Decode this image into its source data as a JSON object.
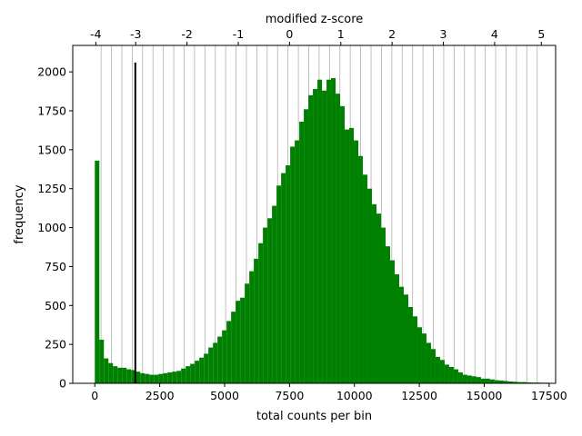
{
  "chart_data": {
    "type": "bar",
    "title": "",
    "xlabel": "total counts per bin",
    "ylabel": "frequency",
    "top_axis_label": "modified z-score",
    "xlim": [
      -850,
      17750
    ],
    "ylim": [
      0,
      2170
    ],
    "x_ticks": [
      0,
      2500,
      5000,
      7500,
      10000,
      12500,
      15000,
      17500
    ],
    "x_tick_labels": [
      "0",
      "2500",
      "5000",
      "7500",
      "10000",
      "12500",
      "15000",
      "17500"
    ],
    "y_ticks": [
      0,
      250,
      500,
      750,
      1000,
      1250,
      1500,
      1750,
      2000
    ],
    "y_tick_labels": [
      "0",
      "250",
      "500",
      "750",
      "1000",
      "1250",
      "1500",
      "1750",
      "2000"
    ],
    "top_ticks": [
      {
        "label": "-4",
        "count": 40
      },
      {
        "label": "-3",
        "count": 1575
      },
      {
        "label": "-2",
        "count": 3550
      },
      {
        "label": "-1",
        "count": 5525
      },
      {
        "label": "0",
        "count": 7500
      },
      {
        "label": "1",
        "count": 9475
      },
      {
        "label": "2",
        "count": 11450
      },
      {
        "label": "3",
        "count": 13425
      },
      {
        "label": "4",
        "count": 15400
      },
      {
        "label": "5",
        "count": 17200
      }
    ],
    "grid_lines_count": [
      240,
      640,
      1040,
      1440,
      1840,
      2240,
      2640,
      3040,
      3440,
      3840,
      4240,
      4640,
      5040,
      5440,
      5840,
      6240,
      6640,
      7040,
      7440,
      7840,
      8240,
      8640,
      9040,
      9440,
      9840,
      10240,
      10640,
      11040,
      11440,
      11840,
      12240,
      12640,
      13040,
      13440,
      13840,
      14240,
      14640,
      15040,
      15440,
      15840,
      16240,
      16640,
      17040
    ],
    "threshold_line": {
      "x": 1560,
      "y_max": 2060,
      "color": "#000000"
    },
    "bar_color": "#008000",
    "bin_width": 175,
    "bin_start": 0,
    "values": [
      1430,
      280,
      160,
      130,
      110,
      100,
      100,
      90,
      85,
      75,
      65,
      60,
      55,
      55,
      60,
      65,
      70,
      75,
      80,
      95,
      110,
      125,
      145,
      165,
      190,
      230,
      260,
      300,
      340,
      400,
      460,
      530,
      550,
      640,
      720,
      800,
      900,
      1000,
      1060,
      1140,
      1270,
      1350,
      1400,
      1520,
      1560,
      1680,
      1760,
      1850,
      1890,
      1950,
      1880,
      1950,
      1960,
      1860,
      1780,
      1630,
      1640,
      1560,
      1460,
      1340,
      1250,
      1150,
      1090,
      1000,
      880,
      790,
      700,
      620,
      570,
      490,
      430,
      360,
      320,
      260,
      220,
      170,
      150,
      120,
      105,
      90,
      70,
      55,
      50,
      45,
      40,
      30,
      30,
      25,
      20,
      18,
      15,
      12,
      10,
      8,
      8,
      6,
      5,
      5,
      4,
      4
    ]
  }
}
